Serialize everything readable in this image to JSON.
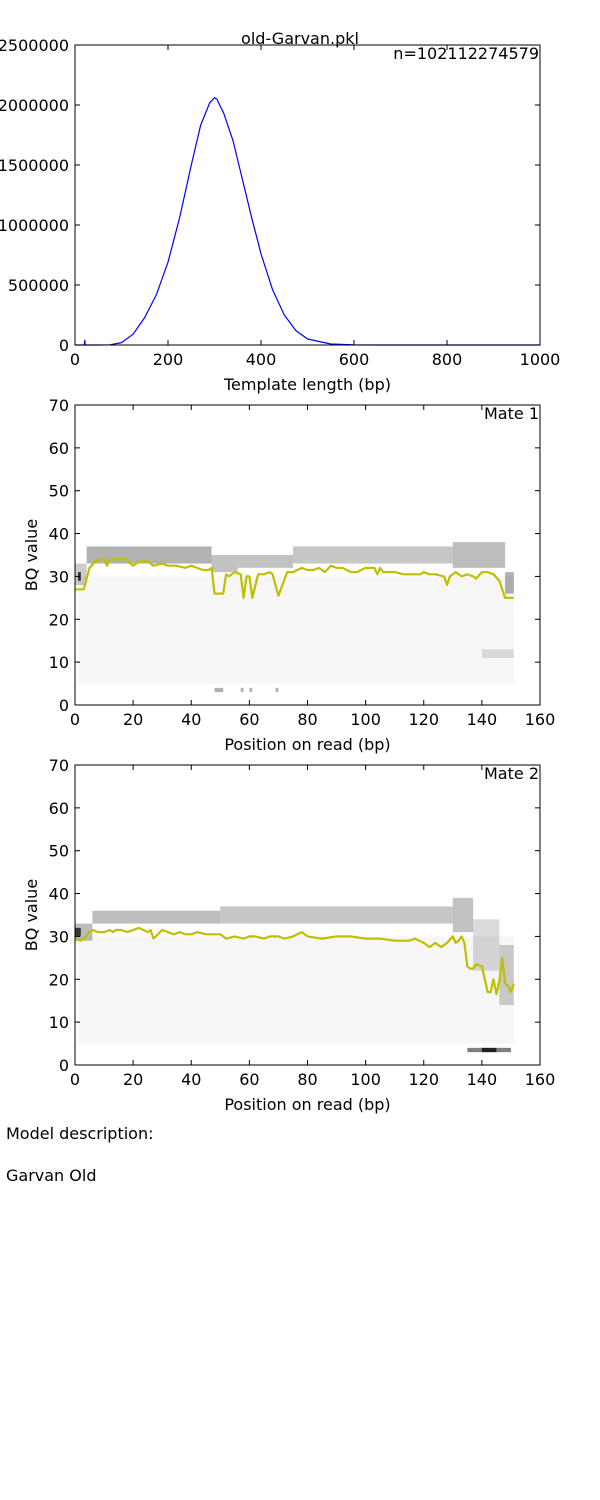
{
  "figure_title": "old-Garvan.pkl",
  "description_label": "Model description:",
  "description_text": "Garvan Old",
  "colors": {
    "tlen_line": "#0000ff",
    "bq_line": "#bfbf00",
    "heat": "#000000",
    "axes": "#000000"
  },
  "chart_data": [
    {
      "type": "line",
      "title": "",
      "annotation": "n=102112274579",
      "xlabel": "Template length (bp)",
      "ylabel": "",
      "xlim": [
        0,
        1000
      ],
      "ylim": [
        0,
        2500000
      ],
      "xticks": [
        0,
        200,
        400,
        600,
        800,
        1000
      ],
      "yticks": [
        0,
        500000,
        1000000,
        1500000,
        2000000,
        2500000
      ],
      "grid": false,
      "series": [
        {
          "x": [
            0,
            10,
            20,
            21,
            22,
            30,
            50,
            75,
            100,
            125,
            150,
            175,
            200,
            225,
            250,
            270,
            290,
            300,
            305,
            320,
            340,
            360,
            380,
            400,
            425,
            450,
            475,
            500,
            550,
            600,
            650,
            700,
            800,
            900,
            1000
          ],
          "y": [
            0,
            0,
            0,
            40000,
            0,
            0,
            0,
            2000,
            20000,
            90000,
            230000,
            420000,
            690000,
            1060000,
            1500000,
            1830000,
            2020000,
            2060000,
            2050000,
            1930000,
            1700000,
            1380000,
            1060000,
            760000,
            460000,
            250000,
            120000,
            50000,
            8000,
            1000,
            0,
            0,
            0,
            0,
            0
          ]
        }
      ]
    },
    {
      "type": "heatmap",
      "annotation": "Mate 1",
      "xlabel": "Position on read (bp)",
      "ylabel": "BQ value",
      "xlim": [
        0,
        160
      ],
      "ylim": [
        0,
        70
      ],
      "xticks": [
        0,
        20,
        40,
        60,
        80,
        100,
        120,
        140,
        160
      ],
      "yticks": [
        0,
        10,
        20,
        30,
        40,
        50,
        60,
        70
      ],
      "grid": false,
      "heat_bands": [
        {
          "x": [
            4,
            47
          ],
          "y": [
            33,
            37
          ],
          "intensity": 0.3
        },
        {
          "x": [
            47,
            56
          ],
          "y": [
            31,
            35
          ],
          "intensity": 0.24
        },
        {
          "x": [
            56,
            75
          ],
          "y": [
            32,
            35
          ],
          "intensity": 0.24
        },
        {
          "x": [
            75,
            130
          ],
          "y": [
            33,
            37
          ],
          "intensity": 0.22
        },
        {
          "x": [
            130,
            148
          ],
          "y": [
            32,
            38
          ],
          "intensity": 0.26
        },
        {
          "x": [
            148,
            151
          ],
          "y": [
            26,
            31
          ],
          "intensity": 0.3
        },
        {
          "x": [
            0,
            4
          ],
          "y": [
            28,
            33
          ],
          "intensity": 0.2
        },
        {
          "x": [
            1,
            151
          ],
          "y": [
            5,
            30
          ],
          "intensity": 0.035
        },
        {
          "x": [
            140,
            151
          ],
          "y": [
            11,
            13
          ],
          "intensity": 0.12
        },
        {
          "x": [
            48,
            51
          ],
          "y": [
            3,
            4
          ],
          "intensity": 0.3
        },
        {
          "x": [
            57,
            58
          ],
          "y": [
            3,
            4
          ],
          "intensity": 0.3
        },
        {
          "x": [
            60,
            61
          ],
          "y": [
            3,
            4
          ],
          "intensity": 0.3
        },
        {
          "x": [
            69,
            70
          ],
          "y": [
            3,
            4
          ],
          "intensity": 0.3
        },
        {
          "x": [
            1,
            2
          ],
          "y": [
            29,
            31
          ],
          "intensity": 0.75
        }
      ],
      "series": [
        {
          "x": [
            0,
            3,
            5,
            7,
            9,
            10,
            11,
            12,
            14,
            16,
            18,
            19,
            20,
            22,
            25,
            27,
            30,
            32,
            35,
            38,
            40,
            42,
            44,
            46,
            47,
            48,
            51,
            52,
            53,
            55,
            57,
            58,
            59,
            60,
            61,
            63,
            65,
            67,
            68,
            70,
            73,
            75,
            78,
            80,
            82,
            84,
            86,
            88,
            90,
            92,
            95,
            97,
            100,
            103,
            104,
            105,
            106,
            108,
            110,
            113,
            116,
            119,
            120,
            122,
            124,
            127,
            128,
            129,
            131,
            133,
            135,
            137,
            138,
            140,
            142,
            144,
            146,
            148,
            151
          ],
          "y": [
            27,
            27,
            32,
            33.5,
            34,
            34,
            32.5,
            34,
            34,
            34,
            34,
            33,
            32.5,
            33.5,
            33.5,
            32.5,
            33,
            32.5,
            32.5,
            32,
            32.5,
            32,
            31.5,
            31.5,
            32,
            26,
            26,
            30.5,
            30,
            31,
            30.5,
            25,
            30,
            30,
            25,
            30.5,
            30.5,
            31,
            30.5,
            25.5,
            31,
            31,
            32,
            31.5,
            31.5,
            32,
            31,
            32.5,
            32,
            32,
            31,
            31,
            32,
            32,
            30.5,
            32,
            31,
            31,
            31,
            30.5,
            30.5,
            30.5,
            31,
            30.5,
            30.5,
            30,
            28,
            30,
            31,
            30,
            30.5,
            30,
            29.5,
            31,
            31,
            30.5,
            29,
            25,
            25
          ]
        }
      ]
    },
    {
      "type": "heatmap",
      "annotation": "Mate 2",
      "xlabel": "Position on read (bp)",
      "ylabel": "BQ value",
      "xlim": [
        0,
        160
      ],
      "ylim": [
        0,
        70
      ],
      "xticks": [
        0,
        20,
        40,
        60,
        80,
        100,
        120,
        140,
        160
      ],
      "yticks": [
        0,
        10,
        20,
        30,
        40,
        50,
        60,
        70
      ],
      "grid": false,
      "heat_bands": [
        {
          "x": [
            0,
            6
          ],
          "y": [
            29,
            33
          ],
          "intensity": 0.26
        },
        {
          "x": [
            6,
            50
          ],
          "y": [
            33,
            36
          ],
          "intensity": 0.26
        },
        {
          "x": [
            50,
            130
          ],
          "y": [
            33,
            37
          ],
          "intensity": 0.22
        },
        {
          "x": [
            130,
            137
          ],
          "y": [
            31,
            39
          ],
          "intensity": 0.24
        },
        {
          "x": [
            137,
            146
          ],
          "y": [
            22,
            34
          ],
          "intensity": 0.14
        },
        {
          "x": [
            146,
            151
          ],
          "y": [
            14,
            28
          ],
          "intensity": 0.18
        },
        {
          "x": [
            1,
            151
          ],
          "y": [
            5,
            30
          ],
          "intensity": 0.035
        },
        {
          "x": [
            135,
            150
          ],
          "y": [
            3,
            4
          ],
          "intensity": 0.5
        },
        {
          "x": [
            140,
            145
          ],
          "y": [
            3,
            4
          ],
          "intensity": 0.75
        },
        {
          "x": [
            0,
            2
          ],
          "y": [
            30,
            32
          ],
          "intensity": 0.7
        }
      ],
      "series": [
        {
          "x": [
            0,
            2,
            3,
            5,
            6,
            8,
            10,
            12,
            13,
            14,
            16,
            18,
            20,
            22,
            25,
            26,
            27,
            30,
            32,
            34,
            36,
            38,
            40,
            42,
            45,
            47,
            50,
            52,
            55,
            58,
            60,
            62,
            65,
            67,
            70,
            72,
            75,
            78,
            80,
            85,
            90,
            95,
            100,
            105,
            110,
            115,
            117,
            120,
            122,
            124,
            126,
            128,
            130,
            131,
            132,
            133,
            134,
            135,
            136,
            137,
            138,
            140,
            142,
            143,
            144,
            145,
            146,
            147,
            148,
            149,
            150,
            151
          ],
          "y": [
            29.5,
            29,
            29.5,
            31,
            31.5,
            31,
            31,
            31.5,
            31,
            31.5,
            31.5,
            31,
            31.5,
            32,
            31,
            31.5,
            29.5,
            31.5,
            31,
            30.5,
            31,
            30.5,
            30.5,
            31,
            30.5,
            30.5,
            30.5,
            29.5,
            30,
            29.5,
            30,
            30,
            29.5,
            30,
            30,
            29.5,
            30,
            31,
            30,
            29.5,
            30,
            30,
            29.5,
            29.5,
            29,
            29,
            29.5,
            28.5,
            27.5,
            28.5,
            27.5,
            28.5,
            30,
            28.5,
            29,
            30,
            28.5,
            23,
            22.5,
            22.5,
            23.5,
            23,
            17,
            17,
            20,
            16.5,
            19.5,
            25,
            19,
            18.5,
            17,
            19
          ]
        }
      ]
    }
  ]
}
